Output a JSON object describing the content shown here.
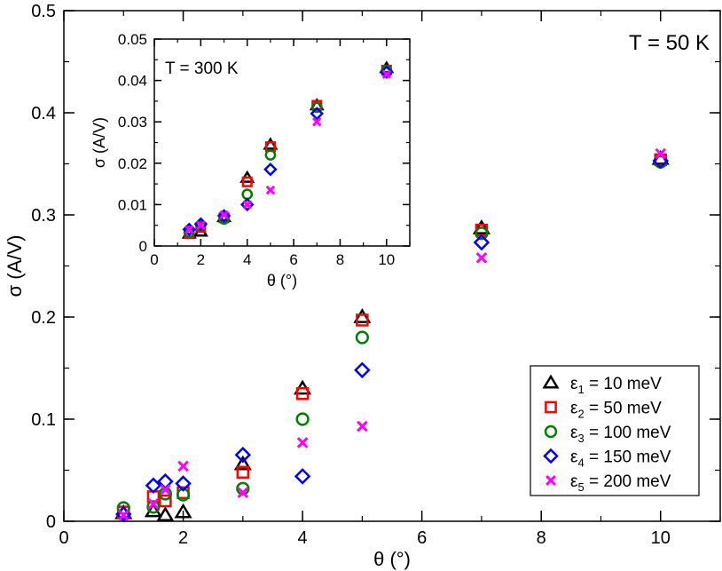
{
  "chart_data": [
    {
      "type": "scatter",
      "title": "",
      "annotation": "T = 50 K",
      "xlabel": "θ  (°)",
      "ylabel": "σ  (A/V)",
      "xlim": [
        0,
        11
      ],
      "ylim": [
        0,
        0.5
      ],
      "xticks": [
        0,
        2,
        4,
        6,
        8,
        10
      ],
      "yticks": [
        0,
        0.1,
        0.2,
        0.3,
        0.4,
        0.5
      ],
      "xtick_labels": [
        "0",
        "2",
        "4",
        "6",
        "8",
        "10"
      ],
      "ytick_labels": [
        "0",
        "0.1",
        "0.2",
        "0.3",
        "0.4",
        "0.5"
      ],
      "legend_position": "bottom-right",
      "series": [
        {
          "name": "ε1 = 10 meV",
          "sym": "ε",
          "sub": "1",
          "val": " =   10 meV",
          "marker": "triangle",
          "color": "#000000",
          "x": [
            1.0,
            1.5,
            1.7,
            2.0,
            3.0,
            4.0,
            5.0,
            7.0,
            10.0
          ],
          "y": [
            0.008,
            0.01,
            0.006,
            0.009,
            0.056,
            0.13,
            0.2,
            0.287,
            0.355
          ]
        },
        {
          "name": "ε2 = 50 meV",
          "sym": "ε",
          "sub": "2",
          "val": " =   50 meV",
          "marker": "square",
          "color": "#ff0000",
          "x": [
            1.0,
            1.5,
            1.7,
            2.0,
            3.0,
            4.0,
            5.0,
            7.0,
            10.0
          ],
          "y": [
            0.009,
            0.024,
            0.02,
            0.028,
            0.048,
            0.125,
            0.197,
            0.285,
            0.354
          ]
        },
        {
          "name": "ε3 = 100 meV",
          "sym": "ε",
          "sub": "3",
          "val": " = 100 meV",
          "marker": "circle",
          "color": "#008000",
          "x": [
            1.0,
            1.5,
            1.7,
            2.0,
            3.0,
            4.0,
            5.0,
            7.0,
            10.0
          ],
          "y": [
            0.013,
            0.014,
            0.027,
            0.026,
            0.032,
            0.1,
            0.18,
            0.282,
            0.352
          ]
        },
        {
          "name": "ε4 = 150 meV",
          "sym": "ε",
          "sub": "4",
          "val": " = 150 meV",
          "marker": "diamond",
          "color": "#0000ff",
          "x": [
            1.0,
            1.5,
            1.7,
            2.0,
            3.0,
            4.0,
            5.0,
            7.0,
            10.0
          ],
          "y": [
            0.007,
            0.035,
            0.039,
            0.037,
            0.065,
            0.044,
            0.148,
            0.273,
            0.353
          ]
        },
        {
          "name": "ε5 = 200 meV",
          "sym": "ε",
          "sub": "5",
          "val": " = 200 meV",
          "marker": "x",
          "color": "#ff00ff",
          "x": [
            1.0,
            1.5,
            1.7,
            2.0,
            3.0,
            4.0,
            5.0,
            7.0,
            10.0
          ],
          "y": [
            0.006,
            0.017,
            0.031,
            0.054,
            0.028,
            0.077,
            0.093,
            0.258,
            0.36
          ]
        }
      ]
    },
    {
      "type": "scatter",
      "title": "",
      "annotation": "T = 300 K",
      "xlabel": "θ  (°)",
      "ylabel": "σ  (A/V)",
      "xlim": [
        0,
        11
      ],
      "ylim": [
        0,
        0.05
      ],
      "xticks": [
        0,
        2,
        4,
        6,
        8,
        10
      ],
      "yticks": [
        0,
        0.01,
        0.02,
        0.03,
        0.04,
        0.05
      ],
      "xtick_labels": [
        "0",
        "2",
        "4",
        "6",
        "8",
        "10"
      ],
      "ytick_labels": [
        "0",
        "0.01",
        "0.02",
        "0.03",
        "0.04",
        "0.05"
      ],
      "series": [
        {
          "name": "ε1 = 10 meV",
          "marker": "triangle",
          "color": "#000000",
          "x": [
            1.5,
            2.0,
            3.0,
            4.0,
            5.0,
            7.0,
            10.0
          ],
          "y": [
            0.003,
            0.0035,
            0.007,
            0.0165,
            0.0245,
            0.034,
            0.043
          ]
        },
        {
          "name": "ε2 = 50 meV",
          "marker": "square",
          "color": "#ff0000",
          "x": [
            1.5,
            2.0,
            3.0,
            4.0,
            5.0,
            7.0,
            10.0
          ],
          "y": [
            0.003,
            0.0045,
            0.0068,
            0.0155,
            0.024,
            0.034,
            0.0425
          ]
        },
        {
          "name": "ε3 = 100 meV",
          "marker": "circle",
          "color": "#008000",
          "x": [
            1.5,
            2.0,
            3.0,
            4.0,
            5.0,
            7.0,
            10.0
          ],
          "y": [
            0.0033,
            0.005,
            0.0065,
            0.0125,
            0.022,
            0.0335,
            0.0425
          ]
        },
        {
          "name": "ε4 = 150 meV",
          "marker": "diamond",
          "color": "#0000ff",
          "x": [
            1.5,
            2.0,
            3.0,
            4.0,
            5.0,
            7.0,
            10.0
          ],
          "y": [
            0.004,
            0.0053,
            0.0073,
            0.01,
            0.0185,
            0.032,
            0.042
          ]
        },
        {
          "name": "ε5 = 200 meV",
          "marker": "x",
          "color": "#ff00ff",
          "x": [
            1.5,
            2.0,
            3.0,
            4.0,
            5.0,
            7.0,
            10.0
          ],
          "y": [
            0.004,
            0.005,
            0.0075,
            0.01,
            0.0135,
            0.03,
            0.0415
          ]
        }
      ]
    }
  ]
}
